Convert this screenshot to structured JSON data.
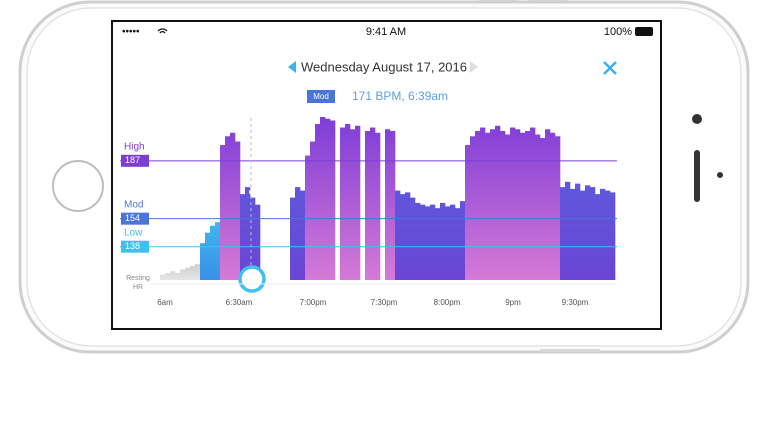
{
  "status_bar": {
    "signal": "•••••",
    "time": "9:41 AM",
    "battery": "100%"
  },
  "header": {
    "date": "Wednesday August 17, 2016",
    "zone_badge": "Mod",
    "reading": "171 BPM, 6:39am"
  },
  "chart_data": {
    "type": "area",
    "levels": [
      {
        "name": "High",
        "value": 187,
        "color": "#7b3fd0"
      },
      {
        "name": "Mod",
        "value": 154,
        "color": "#4a74d8"
      },
      {
        "name": "Low",
        "value": 138,
        "color": "#3fc0f0"
      }
    ],
    "baseline_label": "Resting HR",
    "x_tick_labels": [
      "6am",
      "6:30am",
      "7:00pm",
      "7:30pm",
      "8:00pm",
      "9pm",
      "9:30pm"
    ],
    "ylim": [
      119,
      216
    ],
    "values": [
      122,
      123,
      124,
      123,
      125,
      126,
      127,
      128,
      140,
      146,
      150,
      152,
      196,
      201,
      203,
      198,
      168,
      172,
      166,
      162,
      null,
      null,
      null,
      null,
      null,
      null,
      166,
      172,
      170,
      190,
      198,
      208,
      212,
      211,
      210,
      null,
      206,
      208,
      205,
      207,
      null,
      204,
      206,
      203,
      null,
      205,
      204,
      170,
      168,
      169,
      166,
      163,
      162,
      161,
      162,
      160,
      163,
      161,
      162,
      160,
      164,
      196,
      201,
      204,
      206,
      203,
      205,
      207,
      204,
      202,
      206,
      205,
      203,
      204,
      206,
      202,
      200,
      205,
      203,
      201,
      172,
      175,
      171,
      174,
      170,
      173,
      172,
      168,
      171,
      170,
      169
    ]
  }
}
